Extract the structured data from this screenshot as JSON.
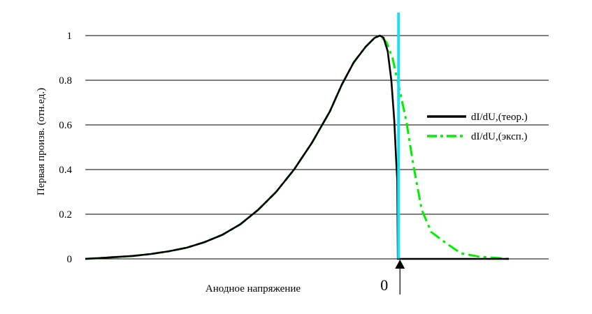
{
  "chart_data": {
    "type": "line",
    "xlabel": "Анодное напряжение",
    "ylabel": "Первая произв. (отн.ед.)",
    "ylim": [
      0,
      1
    ],
    "yticks": [
      "0",
      "0.2",
      "0.4",
      "0.6",
      "0.8",
      "1"
    ],
    "grid": "horizontal",
    "legend_position": "right",
    "zero_marker_label": "0",
    "series": [
      {
        "name": "dI/dU,(теор.)",
        "color": "#000000",
        "style": "solid",
        "points": [
          [
            0,
            0
          ],
          [
            2,
            0.003
          ],
          [
            5,
            0.008
          ],
          [
            8,
            0.013
          ],
          [
            11,
            0.022
          ],
          [
            14,
            0.034
          ],
          [
            17,
            0.05
          ],
          [
            20,
            0.075
          ],
          [
            23,
            0.108
          ],
          [
            26,
            0.155
          ],
          [
            29,
            0.22
          ],
          [
            32,
            0.3
          ],
          [
            35,
            0.4
          ],
          [
            38,
            0.52
          ],
          [
            41,
            0.66
          ],
          [
            43,
            0.78
          ],
          [
            45,
            0.88
          ],
          [
            47,
            0.95
          ],
          [
            48.5,
            0.99
          ],
          [
            49.4,
            1.0
          ],
          [
            50,
            0.99
          ],
          [
            50.7,
            0.93
          ],
          [
            51.3,
            0.8
          ],
          [
            51.8,
            0.62
          ],
          [
            52.1,
            0.45
          ],
          [
            52.3,
            0.35
          ],
          [
            52.4,
            0.0
          ],
          [
            71,
            0.0
          ]
        ]
      },
      {
        "name": "dI/dU,(эксп.)",
        "color": "#00ee00",
        "style": "dash-dot",
        "points": [
          [
            0,
            0
          ],
          [
            2,
            0.003
          ],
          [
            5,
            0.008
          ],
          [
            8,
            0.013
          ],
          [
            11,
            0.022
          ],
          [
            14,
            0.034
          ],
          [
            17,
            0.05
          ],
          [
            20,
            0.075
          ],
          [
            23,
            0.108
          ],
          [
            26,
            0.155
          ],
          [
            29,
            0.22
          ],
          [
            32,
            0.3
          ],
          [
            35,
            0.4
          ],
          [
            38,
            0.52
          ],
          [
            41,
            0.66
          ],
          [
            43,
            0.78
          ],
          [
            45,
            0.88
          ],
          [
            47,
            0.95
          ],
          [
            48.5,
            0.99
          ],
          [
            49.4,
            1.0
          ],
          [
            50.5,
            0.97
          ],
          [
            51.5,
            0.9
          ],
          [
            52.5,
            0.78
          ],
          [
            53.8,
            0.62
          ],
          [
            55,
            0.42
          ],
          [
            56.4,
            0.22
          ],
          [
            58,
            0.12
          ],
          [
            60.5,
            0.07
          ],
          [
            63,
            0.025
          ],
          [
            66,
            0.01
          ],
          [
            71,
            0.0
          ]
        ]
      }
    ],
    "marker_color": "#22ddee",
    "xlim": [
      0,
      71
    ],
    "marker_x": 52.4
  }
}
